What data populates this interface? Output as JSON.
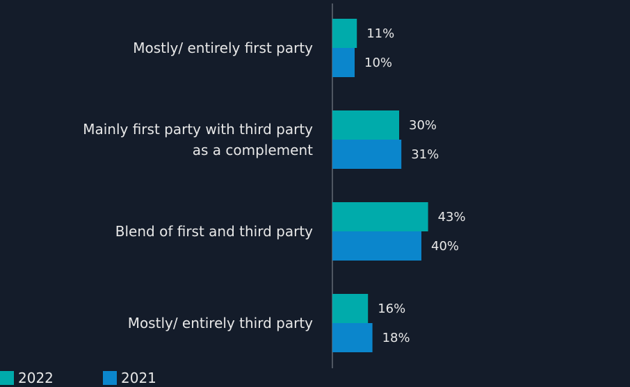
{
  "chart_data": {
    "type": "bar",
    "orientation": "horizontal",
    "categories": [
      "Mostly/ entirely first party",
      "Mainly first party with third party as a complement",
      "Blend of first and third party",
      "Mostly/ entirely third party"
    ],
    "series": [
      {
        "name": "2022",
        "color": "#00abab",
        "values": [
          11,
          30,
          43,
          16
        ],
        "value_labels": [
          "11%",
          "30%",
          "43%",
          "16%"
        ]
      },
      {
        "name": "2021",
        "color": "#0b86cc",
        "values": [
          10,
          31,
          40,
          18
        ],
        "value_labels": [
          "10%",
          "31%",
          "40%",
          "18%"
        ]
      }
    ],
    "xlim": [
      0,
      100
    ]
  }
}
